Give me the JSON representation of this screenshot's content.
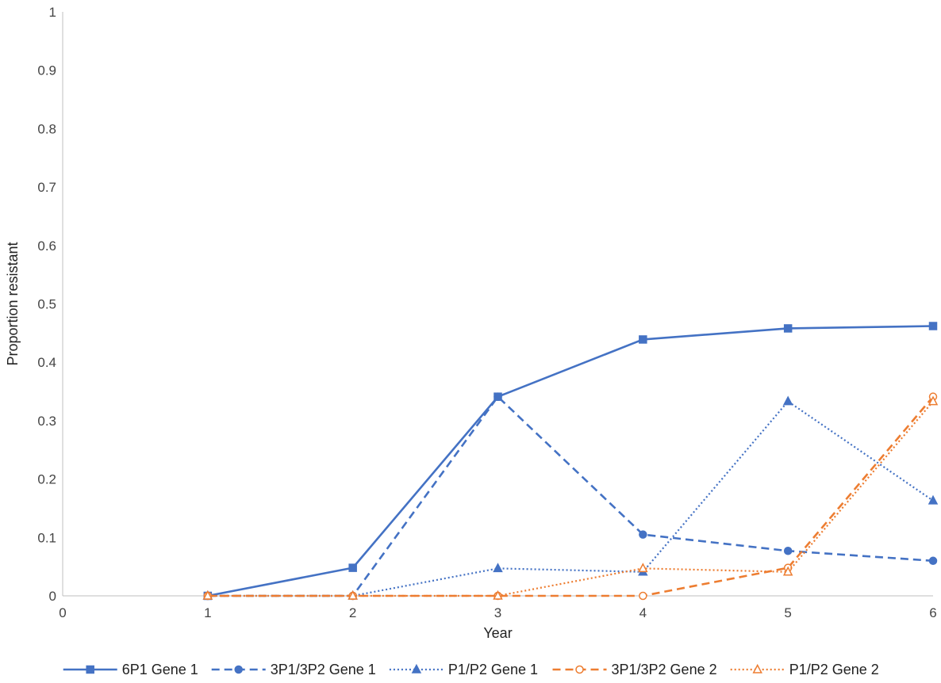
{
  "chart_data": {
    "type": "line",
    "title": "",
    "xlabel": "Year",
    "ylabel": "Proportion resistant",
    "xlim": [
      0,
      6
    ],
    "ylim": [
      0,
      1
    ],
    "x_ticks": [
      "0",
      "1",
      "2",
      "3",
      "4",
      "5",
      "6"
    ],
    "y_ticks": [
      "0",
      "0.1",
      "0.2",
      "0.3",
      "0.4",
      "0.5",
      "0.6",
      "0.7",
      "0.8",
      "0.9",
      "1"
    ],
    "grid": false,
    "legend_position": "bottom",
    "x": [
      1,
      2,
      3,
      4,
      5,
      6
    ],
    "series": [
      {
        "name": "6P1 Gene 1",
        "values": [
          0,
          0.048,
          0.341,
          0.439,
          0.458,
          0.462
        ],
        "color": "#4472C4",
        "dash": "solid",
        "marker": "square",
        "marker_fill": "filled"
      },
      {
        "name": "3P1/3P2 Gene 1",
        "values": [
          0,
          0,
          0.341,
          0.105,
          0.077,
          0.06
        ],
        "color": "#4472C4",
        "dash": "dashed",
        "marker": "circle",
        "marker_fill": "filled"
      },
      {
        "name": "P1/P2 Gene 1",
        "values": [
          0,
          0,
          0.047,
          0.041,
          0.333,
          0.163
        ],
        "color": "#4472C4",
        "dash": "dotted",
        "marker": "triangle",
        "marker_fill": "filled"
      },
      {
        "name": "3P1/3P2 Gene 2",
        "values": [
          0,
          0,
          0,
          0,
          0.048,
          0.341
        ],
        "color": "#ED7D31",
        "dash": "dashed",
        "marker": "circle",
        "marker_fill": "hollow"
      },
      {
        "name": "P1/P2 Gene 2",
        "values": [
          0,
          0,
          0,
          0.047,
          0.041,
          0.333
        ],
        "color": "#ED7D31",
        "dash": "dotted",
        "marker": "triangle",
        "marker_fill": "hollow"
      }
    ]
  },
  "colors": {
    "axis": "#bfbfbf",
    "text": "#444444"
  }
}
